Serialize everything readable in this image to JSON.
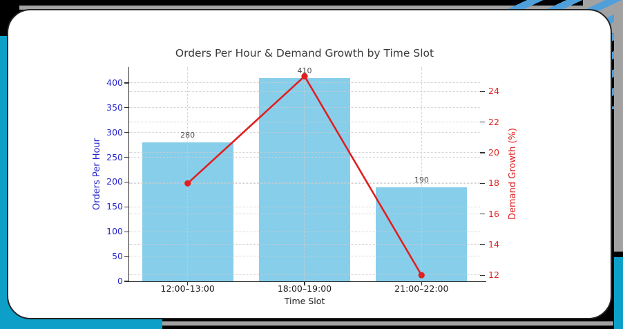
{
  "frame": {
    "background": "#000000",
    "card_bg": "#ffffff",
    "card_border": "#232323",
    "cyan_accent": "#0d9fc8",
    "gray_accent": "#a2a2a2",
    "stripe_blue": "#4f9fdb"
  },
  "chart_data": {
    "type": "combo",
    "title": "Orders Per Hour & Demand Growth by Time Slot",
    "xlabel": "Time Slot",
    "categories": [
      "12:00–13:00",
      "18:00–19:00",
      "21:00–22:00"
    ],
    "series": [
      {
        "name": "Orders Per Hour",
        "type": "bar",
        "axis": "left",
        "color": "#87CEEB",
        "values": [
          280,
          410,
          190
        ],
        "data_labels": [
          "280",
          "410",
          "190"
        ]
      },
      {
        "name": "Demand Growth (%)",
        "type": "line",
        "axis": "right",
        "color": "#e01f1f",
        "values": [
          18,
          25,
          12
        ]
      }
    ],
    "left_axis": {
      "label": "Orders Per Hour",
      "color": "#2727cc",
      "ticks": [
        0,
        50,
        100,
        150,
        200,
        250,
        300,
        350,
        400
      ],
      "lim": [
        0,
        432
      ]
    },
    "right_axis": {
      "label": "Demand Growth (%)",
      "color": "#e02424",
      "ticks": [
        12,
        14,
        16,
        18,
        20,
        22,
        24
      ],
      "lim": [
        11.6,
        25.6
      ]
    },
    "grid": true,
    "legend": "none",
    "title_color": "#3a3a3a"
  }
}
